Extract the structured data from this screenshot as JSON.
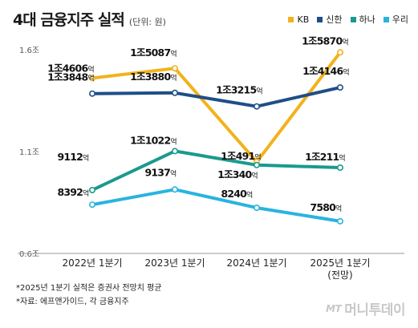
{
  "header": {
    "title": "4대 금융지주 실적",
    "unit": "(단위: 원)"
  },
  "chart_data": {
    "type": "line",
    "title": "4대 금융지주 실적",
    "unit_note": "(단위: 원)",
    "categories": [
      "2022년 1분기",
      "2023년 1분기",
      "2024년 1분기",
      "2025년 1분기"
    ],
    "category_sublabels": [
      "",
      "",
      "",
      "(전망)"
    ],
    "y_tick_labels": [
      "1.6조",
      "1.1조",
      "0.6조"
    ],
    "y_ticks": [
      16000,
      11000,
      6000
    ],
    "ylim": [
      6000,
      16000
    ],
    "y_unit": "억 원",
    "grid": false,
    "legend_position": "top-right",
    "series": [
      {
        "name": "KB",
        "color": "#f2b21b",
        "values": [
          14606,
          15087,
          10491,
          15870
        ],
        "labels": [
          [
            "1조4606",
            "억"
          ],
          [
            "1조5087",
            "억"
          ],
          [
            "1조491",
            "억"
          ],
          [
            "1조5870",
            "억"
          ]
        ]
      },
      {
        "name": "신한",
        "color": "#1f4e87",
        "values": [
          13848,
          13880,
          13215,
          14146
        ],
        "labels": [
          [
            "1조3848",
            "억"
          ],
          [
            "1조3880",
            "억"
          ],
          [
            "1조3215",
            "억"
          ],
          [
            "1조4146",
            "억"
          ]
        ]
      },
      {
        "name": "하나",
        "color": "#1a9a8e",
        "values": [
          9112,
          11022,
          10340,
          10211
        ],
        "labels": [
          [
            "9112",
            "억"
          ],
          [
            "1조1022",
            "억"
          ],
          [
            "1조340",
            "억"
          ],
          [
            "1조211",
            "억"
          ]
        ]
      },
      {
        "name": "우리",
        "color": "#29b4df",
        "values": [
          8392,
          9137,
          8240,
          7580
        ],
        "labels": [
          [
            "8392",
            "억"
          ],
          [
            "9137",
            "억"
          ],
          [
            "8240",
            "억"
          ],
          [
            "7580",
            "억"
          ]
        ]
      }
    ]
  },
  "footnotes": [
    "*2025년 1분기 실적은 증권사 전망치 평균",
    "*자료: 에프앤가이드, 각 금융지주"
  ],
  "watermark": {
    "mark": "MT",
    "name": "머니투데이"
  }
}
